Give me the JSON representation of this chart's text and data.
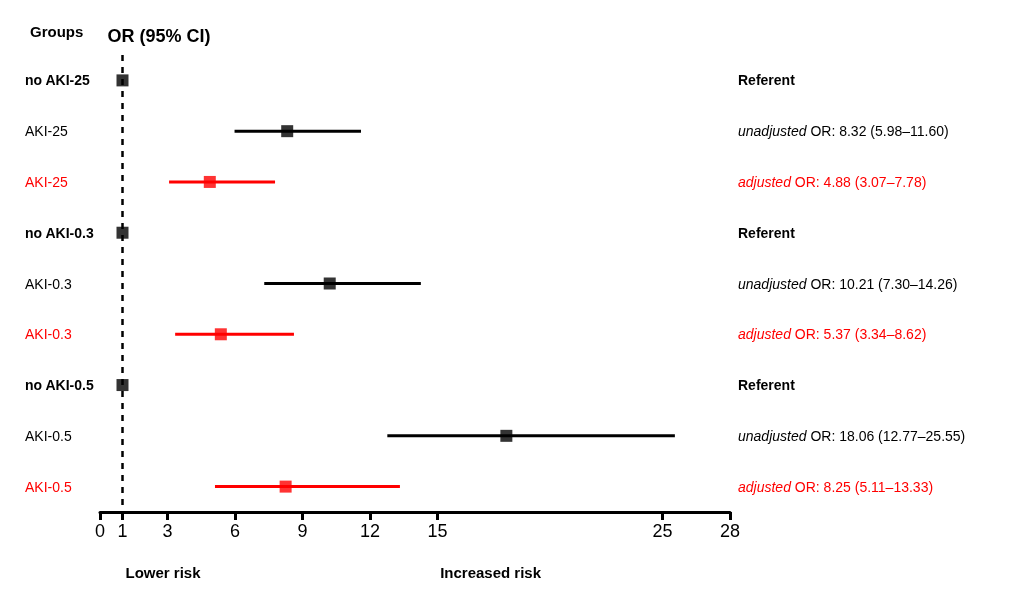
{
  "chart_data": {
    "type": "scatter",
    "title": "OR (95% CI)",
    "ylabel": "Groups",
    "orientation": "horizontal",
    "categories": [
      "no AKI-25",
      "AKI-25",
      "AKI-25",
      "no AKI-0.3",
      "AKI-0.3",
      "AKI-0.3",
      "no AKI-0.5",
      "AKI-0.5",
      "AKI-0.5"
    ],
    "series": [
      {
        "color": "#000000",
        "values": [
          1,
          null,
          null,
          1,
          null,
          null,
          1,
          null,
          null
        ]
      },
      {
        "color": "#000000",
        "values": [
          null,
          8.32,
          null,
          null,
          10.21,
          null,
          null,
          18.06,
          null
        ],
        "errors": [
          null,
          [
            5.98,
            11.6
          ],
          null,
          null,
          [
            7.3,
            14.26
          ],
          null,
          null,
          [
            12.77,
            25.55
          ],
          null
        ]
      },
      {
        "color": "#ff0000",
        "values": [
          null,
          null,
          4.88,
          null,
          null,
          5.37,
          null,
          null,
          8.25
        ],
        "errors": [
          null,
          null,
          [
            3.07,
            7.78
          ],
          null,
          null,
          [
            3.34,
            8.62
          ],
          null,
          null,
          [
            5.11,
            13.33
          ]
        ]
      }
    ],
    "xlim": [
      0,
      28
    ],
    "xticks": [
      0,
      1,
      3,
      6,
      9,
      12,
      15,
      25,
      28
    ],
    "ref_lines": [
      {
        "axis": "x",
        "value": 1,
        "color": "#000000",
        "line_style": "dashed"
      }
    ],
    "annotations": [
      "Lower risk",
      "Increased risk",
      "Referent",
      "unadjusted OR: 8.32 (5.98–11.60)",
      "adjusted OR: 4.88 (3.07–7.78)",
      "Referent",
      "unadjusted OR: 10.21 (7.30–14.26)",
      "adjusted OR: 5.37 (3.34–8.62)",
      "Referent",
      "unadjusted OR: 18.06 (12.77–25.55)",
      "adjusted OR: 8.25 (5.11–13.33)"
    ],
    "marker": "square",
    "grid": false
  }
}
